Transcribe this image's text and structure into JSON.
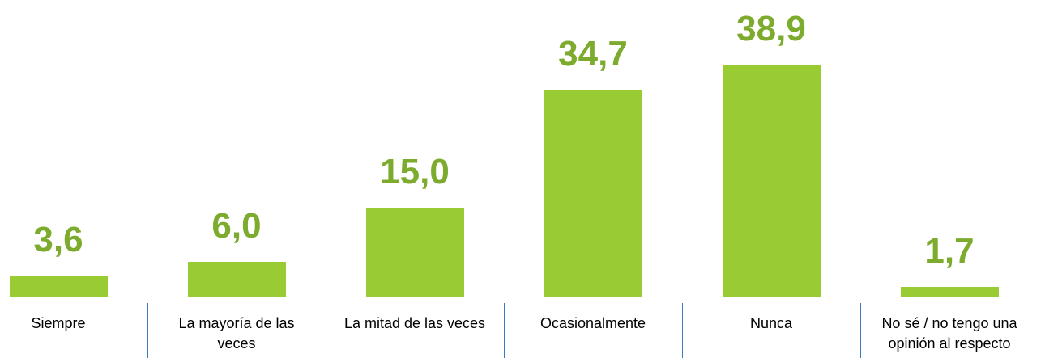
{
  "chart_data": {
    "type": "bar",
    "categories": [
      "Siempre",
      "La mayoría de las veces",
      "La mitad de las veces",
      "Ocasionalmente",
      "Nunca",
      "No sé / no tengo una opinión al respecto"
    ],
    "values": [
      3.6,
      6.0,
      15.0,
      34.7,
      38.9,
      1.7
    ],
    "value_labels": [
      "3,6",
      "6,0",
      "15,0",
      "34,7",
      "38,9",
      "1,7"
    ],
    "color": "#99cc33"
  }
}
